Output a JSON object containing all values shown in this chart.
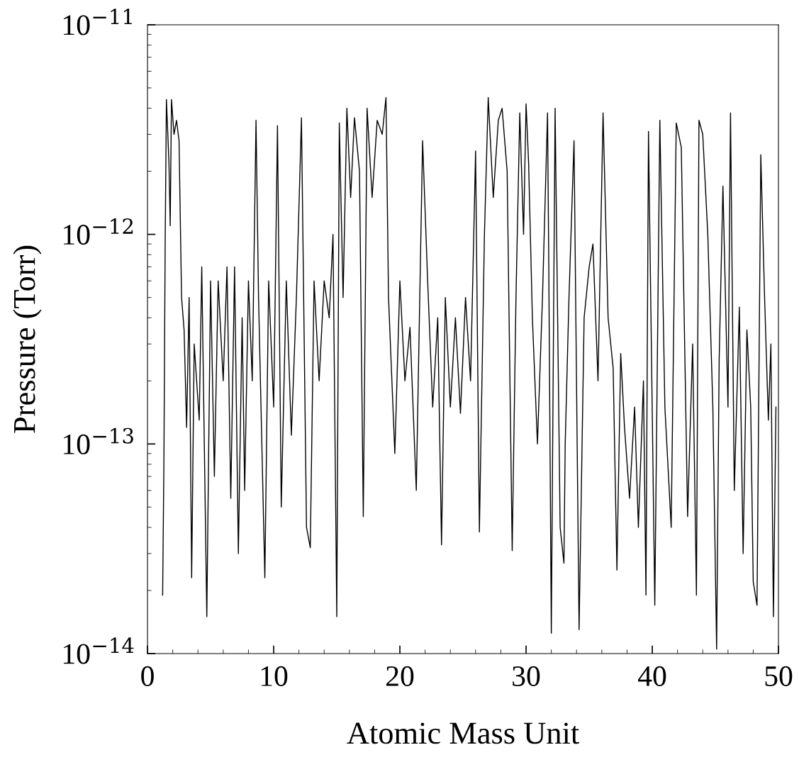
{
  "chart_data": {
    "type": "line",
    "xlabel": "Atomic Mass Unit",
    "ylabel": "Pressure (Torr)",
    "log": "y",
    "grid": false,
    "marker": "none",
    "line_style": "solid",
    "xlim": [
      0,
      50
    ],
    "xticks": [
      0,
      10,
      20,
      30,
      40,
      50
    ],
    "ylim": [
      1e-14,
      1e-11
    ],
    "yticks": [
      {
        "value": 1e-14,
        "label": "10$^{−14}$"
      },
      {
        "value": 1e-13,
        "label": "10$^{−13}$"
      },
      {
        "value": 1e-12,
        "label": "10$^{−12}$"
      },
      {
        "value": 1e-11,
        "label": "10$^{−11}$"
      }
    ],
    "series": [
      {
        "color": "#000000",
        "x": [
          1.2,
          1.3,
          1.4,
          1.5,
          1.7,
          1.8,
          1.9,
          2.1,
          2.3,
          2.5,
          2.7,
          2.9,
          3.1,
          3.3,
          3.5,
          3.7,
          4.1,
          4.3,
          4.7,
          5.0,
          5.3,
          5.6,
          6.0,
          6.3,
          6.6,
          6.9,
          7.2,
          7.5,
          7.7,
          8.0,
          8.3,
          8.6,
          8.8,
          9.3,
          9.6,
          10.0,
          10.3,
          10.6,
          11.0,
          11.4,
          11.8,
          12.2,
          12.6,
          12.9,
          13.2,
          13.6,
          14.0,
          14.4,
          14.7,
          15.0,
          15.2,
          15.5,
          15.8,
          16.1,
          16.4,
          16.8,
          17.1,
          17.4,
          17.8,
          18.2,
          18.6,
          18.9,
          19.1,
          19.6,
          20.0,
          20.4,
          20.8,
          21.3,
          21.8,
          22.2,
          22.6,
          23.0,
          23.3,
          23.6,
          24.0,
          24.4,
          24.8,
          25.2,
          25.6,
          26.0,
          26.3,
          26.7,
          27.0,
          27.4,
          27.8,
          28.1,
          28.5,
          28.9,
          29.2,
          29.5,
          29.8,
          30.0,
          30.2,
          30.5,
          30.9,
          31.3,
          31.7,
          31.8,
          32.0,
          32.3,
          32.7,
          33.0,
          33.1,
          33.4,
          33.8,
          34.2,
          34.6,
          35.0,
          35.3,
          35.7,
          36.1,
          36.5,
          36.9,
          37.2,
          37.5,
          37.8,
          38.2,
          38.6,
          38.9,
          39.3,
          39.5,
          39.7,
          40.0,
          40.2,
          40.6,
          41.0,
          41.5,
          41.9,
          42.3,
          42.8,
          43.2,
          43.5,
          43.7,
          44.0,
          44.4,
          44.8,
          45.1,
          45.3,
          45.6,
          46.0,
          46.2,
          46.5,
          46.9,
          47.2,
          47.5,
          47.8,
          48.0,
          48.3,
          48.6,
          48.9,
          49.2,
          49.4,
          49.6,
          49.8
        ],
        "values": [
          1.9e-14,
          8e-14,
          9e-13,
          4.4e-12,
          2.2e-12,
          1.1e-12,
          4.4e-12,
          3e-12,
          3.5e-12,
          2.8e-12,
          5e-13,
          3.5e-13,
          1.2e-13,
          5e-13,
          2.3e-14,
          3e-13,
          1.3e-13,
          7e-13,
          1.5e-14,
          6e-13,
          7e-14,
          6e-13,
          2e-13,
          7e-13,
          5.5e-14,
          7e-13,
          3e-14,
          4e-13,
          6e-14,
          6e-13,
          2e-13,
          3.5e-12,
          5e-13,
          2.3e-14,
          6e-13,
          1.5e-13,
          3.3e-12,
          5e-14,
          6e-13,
          1.1e-13,
          5e-13,
          3.6e-12,
          4e-14,
          3.2e-14,
          6e-13,
          2e-13,
          6e-13,
          4e-13,
          1e-12,
          1.5e-14,
          3.4e-12,
          5e-13,
          4e-12,
          1.5e-12,
          3.6e-12,
          2e-12,
          4.5e-14,
          4e-12,
          1.5e-12,
          3.5e-12,
          3e-12,
          4.5e-12,
          5e-13,
          9e-14,
          6e-13,
          2e-13,
          3.6e-13,
          6e-14,
          2.8e-12,
          6e-13,
          1.5e-13,
          4e-13,
          3.3e-14,
          5e-13,
          1.5e-13,
          4e-13,
          1.4e-13,
          5e-13,
          2e-13,
          2.5e-12,
          3.8e-14,
          1e-12,
          4.5e-12,
          1.5e-12,
          3.5e-12,
          4e-12,
          2e-12,
          3.1e-14,
          5e-13,
          3.8e-12,
          1e-12,
          4.2e-12,
          2.2e-12,
          4e-13,
          1e-13,
          5e-13,
          3.8e-12,
          7e-13,
          1.25e-14,
          4e-12,
          4e-14,
          2.7e-14,
          1e-13,
          5e-13,
          2.8e-12,
          1.3e-14,
          4e-13,
          7e-13,
          9e-13,
          2e-13,
          3.8e-12,
          4e-13,
          2.3e-13,
          2.5e-14,
          2.7e-13,
          1.2e-13,
          5.5e-14,
          1.5e-13,
          4e-14,
          2e-13,
          1.9e-14,
          3.1e-12,
          1.4e-13,
          1.7e-14,
          3.5e-12,
          1.5e-13,
          4e-14,
          3.4e-12,
          2.6e-12,
          4.5e-14,
          3e-13,
          1.9e-14,
          3.5e-12,
          3e-12,
          1e-12,
          1.5e-13,
          1.05e-14,
          2.5e-13,
          1.7e-12,
          1.5e-13,
          3.8e-12,
          6e-14,
          4.5e-13,
          3e-14,
          3.5e-13,
          1.5e-13,
          2.2e-14,
          1.7e-14,
          2.4e-12,
          5e-13,
          1.3e-13,
          3e-13,
          1.5e-14,
          1.5e-13
        ]
      }
    ]
  }
}
